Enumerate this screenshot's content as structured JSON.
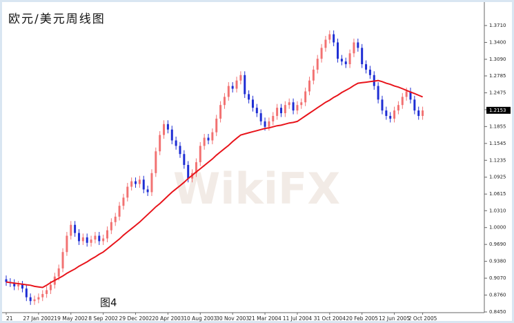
{
  "chart_data": {
    "type": "candlestick",
    "title": "欧元/美元周线图",
    "annotation": "图4",
    "watermark": "WikiFX",
    "up_color": "#f27272",
    "down_color": "#1e2ed4",
    "categories": [
      "21",
      null,
      null,
      null,
      null,
      null,
      null,
      null,
      "27 Jan 2002",
      null,
      null,
      null,
      null,
      null,
      null,
      null,
      "19 May 2002",
      null,
      null,
      null,
      null,
      null,
      null,
      null,
      "8 Sep 2002",
      null,
      null,
      null,
      null,
      null,
      null,
      null,
      "29 Dec 2002",
      null,
      null,
      null,
      null,
      null,
      null,
      null,
      "20 Apr 2003",
      null,
      null,
      null,
      null,
      null,
      null,
      null,
      "10 Aug 2003",
      null,
      null,
      null,
      null,
      null,
      null,
      null,
      "30 Nov 2003",
      null,
      null,
      null,
      null,
      null,
      null,
      null,
      "21 Mar 2004",
      null,
      null,
      null,
      null,
      null,
      null,
      null,
      "11 Jul 2004",
      null,
      null,
      null,
      null,
      null,
      null,
      null,
      "31 Oct 2004",
      null,
      null,
      null,
      null,
      null,
      null,
      null,
      "20 Feb 2005",
      null,
      null,
      null,
      null,
      null,
      null,
      null,
      "12 Jun 2005",
      null,
      null,
      null,
      null,
      null,
      null,
      "2 Oct 2005"
    ],
    "open": [
      0.905,
      0.9,
      0.898,
      0.892,
      0.895,
      0.888,
      0.872,
      0.865,
      0.868,
      0.872,
      0.878,
      0.885,
      0.895,
      0.91,
      0.925,
      0.955,
      0.985,
      1.005,
      0.99,
      0.975,
      0.982,
      0.972,
      0.978,
      0.985,
      0.975,
      0.98,
      0.995,
      1.01,
      1.02,
      1.04,
      1.055,
      1.075,
      1.085,
      1.08,
      1.088,
      1.07,
      1.065,
      1.1,
      1.14,
      1.17,
      1.19,
      1.18,
      1.16,
      1.15,
      1.135,
      1.115,
      1.09,
      1.1,
      1.12,
      1.15,
      1.165,
      1.16,
      1.175,
      1.2,
      1.225,
      1.24,
      1.26,
      1.255,
      1.27,
      1.28,
      1.245,
      1.235,
      1.22,
      1.21,
      1.195,
      1.185,
      1.195,
      1.205,
      1.22,
      1.21,
      1.225,
      1.23,
      1.215,
      1.225,
      1.23,
      1.25,
      1.27,
      1.29,
      1.31,
      1.33,
      1.345,
      1.355,
      1.34,
      1.31,
      1.305,
      1.3,
      1.32,
      1.34,
      1.33,
      1.3,
      1.29,
      1.28,
      1.26,
      1.235,
      1.215,
      1.205,
      1.2,
      1.215,
      1.225,
      1.24,
      1.25,
      1.235,
      1.215,
      1.205
    ],
    "high": [
      0.912,
      0.907,
      0.905,
      0.902,
      0.902,
      0.895,
      0.879,
      0.875,
      0.879,
      0.885,
      0.892,
      0.902,
      0.917,
      0.932,
      0.962,
      0.992,
      1.012,
      1.012,
      0.997,
      0.989,
      0.989,
      0.985,
      0.992,
      0.992,
      0.987,
      1.002,
      1.017,
      1.027,
      1.047,
      1.062,
      1.082,
      1.092,
      1.092,
      1.095,
      1.095,
      1.077,
      1.107,
      1.147,
      1.177,
      1.197,
      1.197,
      1.187,
      1.167,
      1.157,
      1.142,
      1.122,
      1.107,
      1.127,
      1.157,
      1.172,
      1.172,
      1.182,
      1.207,
      1.232,
      1.247,
      1.267,
      1.267,
      1.277,
      1.287,
      1.287,
      1.252,
      1.242,
      1.227,
      1.217,
      1.202,
      1.202,
      1.212,
      1.227,
      1.227,
      1.232,
      1.237,
      1.237,
      1.232,
      1.237,
      1.257,
      1.277,
      1.297,
      1.317,
      1.337,
      1.352,
      1.362,
      1.362,
      1.347,
      1.317,
      1.312,
      1.327,
      1.347,
      1.347,
      1.337,
      1.307,
      1.297,
      1.287,
      1.267,
      1.242,
      1.222,
      1.212,
      1.222,
      1.232,
      1.247,
      1.257,
      1.257,
      1.242,
      1.222,
      1.222
    ],
    "low": [
      0.893,
      0.891,
      0.885,
      0.885,
      0.881,
      0.865,
      0.858,
      0.858,
      0.861,
      0.865,
      0.871,
      0.878,
      0.888,
      0.903,
      0.918,
      0.948,
      0.978,
      0.983,
      0.968,
      0.968,
      0.965,
      0.965,
      0.971,
      0.968,
      0.968,
      0.973,
      0.988,
      1.003,
      1.013,
      1.033,
      1.048,
      1.068,
      1.073,
      1.073,
      1.063,
      1.058,
      1.058,
      1.093,
      1.133,
      1.163,
      1.173,
      1.153,
      1.143,
      1.128,
      1.108,
      1.083,
      1.083,
      1.093,
      1.113,
      1.143,
      1.153,
      1.153,
      1.168,
      1.193,
      1.218,
      1.233,
      1.248,
      1.248,
      1.263,
      1.238,
      1.228,
      1.213,
      1.203,
      1.188,
      1.178,
      1.178,
      1.188,
      1.198,
      1.203,
      1.203,
      1.218,
      1.208,
      1.208,
      1.218,
      1.223,
      1.243,
      1.263,
      1.283,
      1.303,
      1.323,
      1.338,
      1.333,
      1.303,
      1.298,
      1.293,
      1.293,
      1.313,
      1.323,
      1.293,
      1.283,
      1.273,
      1.253,
      1.228,
      1.208,
      1.198,
      1.193,
      1.193,
      1.208,
      1.218,
      1.233,
      1.228,
      1.208,
      1.198,
      1.198
    ],
    "close": [
      0.9,
      0.898,
      0.892,
      0.895,
      0.888,
      0.872,
      0.865,
      0.868,
      0.872,
      0.878,
      0.885,
      0.895,
      0.91,
      0.925,
      0.955,
      0.985,
      1.005,
      0.99,
      0.975,
      0.982,
      0.972,
      0.978,
      0.985,
      0.975,
      0.98,
      0.995,
      1.01,
      1.02,
      1.04,
      1.055,
      1.075,
      1.085,
      1.08,
      1.088,
      1.07,
      1.065,
      1.1,
      1.14,
      1.17,
      1.19,
      1.18,
      1.16,
      1.15,
      1.135,
      1.115,
      1.09,
      1.1,
      1.12,
      1.15,
      1.165,
      1.16,
      1.175,
      1.2,
      1.225,
      1.24,
      1.26,
      1.255,
      1.27,
      1.28,
      1.245,
      1.235,
      1.22,
      1.21,
      1.195,
      1.185,
      1.195,
      1.205,
      1.22,
      1.21,
      1.225,
      1.23,
      1.215,
      1.225,
      1.23,
      1.25,
      1.27,
      1.29,
      1.31,
      1.33,
      1.345,
      1.355,
      1.34,
      1.31,
      1.305,
      1.3,
      1.32,
      1.34,
      1.33,
      1.3,
      1.29,
      1.28,
      1.26,
      1.235,
      1.215,
      1.205,
      1.2,
      1.215,
      1.225,
      1.24,
      1.25,
      1.235,
      1.215,
      1.205,
      1.215
    ],
    "moving_average": {
      "color": "#e8141b",
      "values": [
        0.9,
        0.899,
        0.898,
        0.897,
        0.896,
        0.895,
        0.894,
        0.892,
        0.891,
        0.89,
        0.894,
        0.899,
        0.903,
        0.907,
        0.911,
        0.916,
        0.92,
        0.924,
        0.929,
        0.933,
        0.937,
        0.942,
        0.946,
        0.951,
        0.955,
        0.961,
        0.967,
        0.973,
        0.979,
        0.986,
        0.992,
        0.998,
        1.004,
        1.01,
        1.017,
        1.024,
        1.031,
        1.038,
        1.044,
        1.051,
        1.058,
        1.065,
        1.071,
        1.077,
        1.083,
        1.09,
        1.096,
        1.102,
        1.108,
        1.114,
        1.12,
        1.126,
        1.133,
        1.139,
        1.145,
        1.151,
        1.158,
        1.164,
        1.17,
        1.172,
        1.174,
        1.176,
        1.178,
        1.18,
        1.182,
        1.183,
        1.185,
        1.187,
        1.188,
        1.19,
        1.192,
        1.193,
        1.195,
        1.2,
        1.205,
        1.21,
        1.215,
        1.22,
        1.225,
        1.23,
        1.234,
        1.239,
        1.243,
        1.248,
        1.252,
        1.256,
        1.261,
        1.265,
        1.266,
        1.267,
        1.268,
        1.269,
        1.27,
        1.268,
        1.265,
        1.263,
        1.26,
        1.258,
        1.255,
        1.252,
        1.249,
        1.246,
        1.243,
        1.24
      ]
    },
    "last_price": 1.2153,
    "ylim": [
      0.845,
      1.371
    ],
    "yticks": [
      {
        "value": 0.845,
        "label": "0.8450"
      },
      {
        "value": 0.876,
        "label": "0.8760"
      },
      {
        "value": 0.907,
        "label": "0.9070"
      },
      {
        "value": 0.938,
        "label": "0.9380"
      },
      {
        "value": 0.969,
        "label": "0.9690"
      },
      {
        "value": 1.0,
        "label": "1.0000"
      },
      {
        "value": 1.031,
        "label": "1.0310"
      },
      1.0615,
      1.0925,
      1.1235,
      1.1545,
      1.1855,
      1.2165,
      1.2475,
      1.2785,
      {
        "value": 1.309,
        "label": "1.3090"
      },
      {
        "value": 1.34,
        "label": "1.3400"
      },
      {
        "value": 1.371,
        "label": "1.3710"
      }
    ]
  }
}
